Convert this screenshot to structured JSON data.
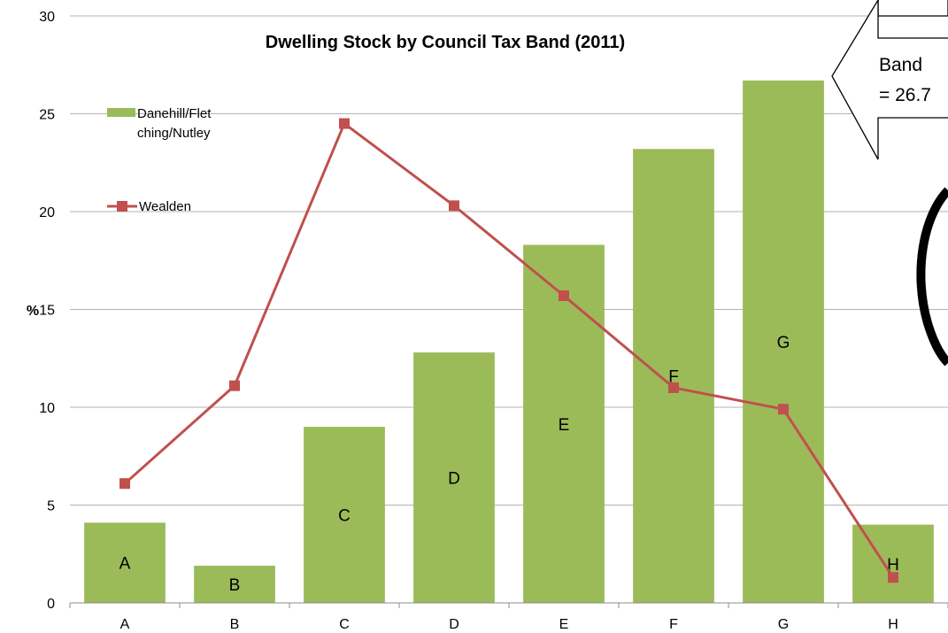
{
  "chart_data": {
    "type": "bar",
    "title": "Dwelling  Stock by Council Tax Band (2011)",
    "ylabel": "%",
    "xlabel": "",
    "ylim": [
      0,
      30
    ],
    "yticks": [
      "0",
      "5",
      "10",
      "15",
      "20",
      "25",
      "30"
    ],
    "grid": true,
    "legend_position": "top-left",
    "categories": [
      "A",
      "B",
      "C",
      "D",
      "E",
      "F",
      "G",
      "H"
    ],
    "series": [
      {
        "name": "Danehill/Flet ching/Nutley",
        "legend_lines": [
          "Danehill/Flet",
          "ching/Nutley"
        ],
        "type": "bar",
        "color": "#9bbb59",
        "values": [
          4.1,
          1.9,
          9.0,
          12.8,
          18.3,
          23.2,
          26.7,
          4.0
        ],
        "data_labels": [
          "A",
          "B",
          "C",
          "D",
          "E",
          "F",
          "G",
          "H"
        ]
      },
      {
        "name": "Wealden",
        "type": "line",
        "color": "#c0504d",
        "values": [
          6.1,
          11.1,
          24.5,
          20.3,
          15.7,
          11.0,
          9.9,
          1.3
        ]
      }
    ],
    "annotation": {
      "lines": [
        "Band",
        "= 26.7"
      ]
    }
  }
}
